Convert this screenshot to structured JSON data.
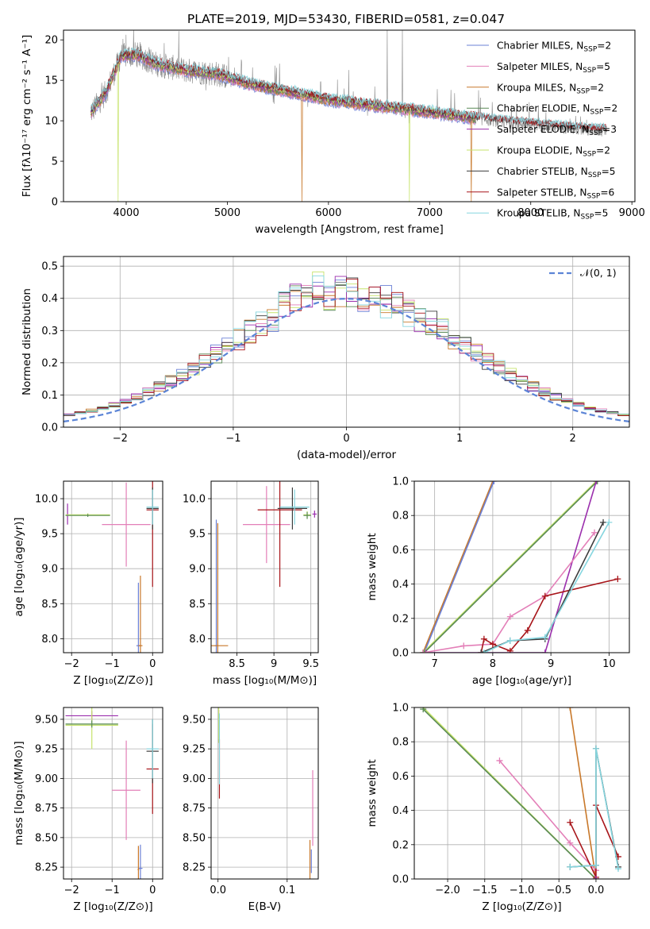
{
  "figure": {
    "title": "PLATE=2019, MJD=53430, FIBERID=0581, z=0.047"
  },
  "colors": {
    "Chabrier MILES": "#6b80d6",
    "Salpeter MILES": "#e37fb8",
    "Kroupa MILES": "#c8782a",
    "Chabrier ELODIE": "#5a8a56",
    "Salpeter ELODIE": "#9b2fad",
    "Kroupa ELODIE": "#c6e36b",
    "Chabrier STELIB": "#3c3c3c",
    "Salpeter STELIB": "#a8151a",
    "Kroupa STELIB": "#86d6df",
    "normal": "#5b84d6",
    "grid": "#b0b0b0"
  },
  "chart_data": [
    {
      "type": "line",
      "title": "PLATE=2019, MJD=53430, FIBERID=0581, z=0.047",
      "xlabel": "wavelength [Angstrom, rest frame]",
      "ylabel": "Flux [fλ10⁻¹⁷ erg cm⁻² s⁻¹ A⁻¹]",
      "xlim": [
        3380,
        9030
      ],
      "ylim": [
        0,
        21.2
      ],
      "xticks": [
        4000,
        5000,
        6000,
        7000,
        8000,
        9000
      ],
      "yticks": [
        0,
        5,
        10,
        15,
        20
      ],
      "grid": false,
      "legend_position": "top-right",
      "legend": [
        {
          "model": "Chabrier MILES",
          "nssp": "2"
        },
        {
          "model": "Salpeter MILES",
          "nssp": "5"
        },
        {
          "model": "Kroupa MILES",
          "nssp": "2"
        },
        {
          "model": "Chabrier ELODIE",
          "nssp": "2"
        },
        {
          "model": "Salpeter ELODIE",
          "nssp": "3"
        },
        {
          "model": "Kroupa ELODIE",
          "nssp": "2"
        },
        {
          "model": "Chabrier STELIB",
          "nssp": "5"
        },
        {
          "model": "Salpeter STELIB",
          "nssp": "6"
        },
        {
          "model": "Kroupa STELIB",
          "nssp": "5"
        }
      ],
      "continuum": [
        [
          3650,
          11
        ],
        [
          3800,
          13.5
        ],
        [
          3950,
          18
        ],
        [
          4100,
          18.2
        ],
        [
          4300,
          17
        ],
        [
          4600,
          16.2
        ],
        [
          4900,
          15.8
        ],
        [
          5200,
          14.6
        ],
        [
          5600,
          13.6
        ],
        [
          6000,
          12.6
        ],
        [
          6500,
          11.8
        ],
        [
          7000,
          11.1
        ],
        [
          7400,
          10.4
        ],
        [
          7800,
          9.8
        ],
        [
          8200,
          9.3
        ],
        [
          8600,
          8.9
        ],
        [
          8750,
          8.8
        ]
      ],
      "data_range_x": [
        3650,
        8750
      ],
      "model_range_x": [
        3650,
        7450
      ],
      "stelib_range_x": [
        7450,
        8750
      ],
      "dips": [
        {
          "x": 3920,
          "y": 0,
          "model": "Kroupa ELODIE"
        },
        {
          "x": 5740,
          "y": 0,
          "model": "Kroupa MILES"
        },
        {
          "x": 6800,
          "y": 0,
          "model": "Kroupa ELODIE"
        },
        {
          "x": 7410,
          "y": 0,
          "model": "Kroupa MILES"
        }
      ],
      "data_spikes": [
        6580,
        6730
      ]
    },
    {
      "type": "line",
      "xlabel": "(data-model)/error",
      "ylabel": "Normed distribution",
      "xlim": [
        -2.5,
        2.5
      ],
      "ylim": [
        0,
        0.53
      ],
      "xticks": [
        -2,
        -1,
        0,
        1,
        2
      ],
      "yticks": [
        0.0,
        0.1,
        0.2,
        0.3,
        0.4,
        0.5
      ],
      "grid": true,
      "legend_position": "top-right",
      "legend": [
        "𝒩(0, 1)"
      ],
      "bin_width": 0.1,
      "hist_left_edge": -2.5,
      "normal_curve": {
        "mean": 0.0,
        "sigma": 1.0
      }
    },
    {
      "type": "scatter",
      "xlabel": "Z [log₁₀(Z/Z⊙)]",
      "ylabel": "age  [log₁₀(age/yr)]",
      "xlim": [
        -2.2,
        0.25
      ],
      "ylim": [
        7.8,
        10.25
      ],
      "xticks": [
        -2,
        -1,
        0
      ],
      "yticks": [
        8.0,
        8.5,
        9.0,
        9.5,
        10.0
      ],
      "grid": true,
      "points": [
        {
          "model": "Chabrier MILES",
          "x": -0.35,
          "y": 7.9,
          "xe": 0.05,
          "ye": 0.9
        },
        {
          "model": "Kroupa MILES",
          "x": -0.3,
          "y": 7.9,
          "xe": 0.05,
          "ye": 1.0
        },
        {
          "model": "Salpeter MILES",
          "x": -0.65,
          "y": 9.63,
          "xe": 0.6,
          "ye": 0.6
        },
        {
          "model": "Salpeter ELODIE",
          "x": -2.1,
          "y": 9.78,
          "xe": 0.0,
          "ye": 0.15
        },
        {
          "model": "Kroupa ELODIE",
          "x": -1.6,
          "y": 9.77,
          "xe": 0.55,
          "ye": 0.02
        },
        {
          "model": "Chabrier ELODIE",
          "x": -1.6,
          "y": 9.76,
          "xe": 0.55,
          "ye": 0.02
        },
        {
          "model": "Salpeter STELIB",
          "x": 0.0,
          "y": 9.84,
          "xe": 0.15,
          "ye": 1.1
        },
        {
          "model": "Chabrier STELIB",
          "x": 0.0,
          "y": 9.86,
          "xe": 0.15,
          "ye": 0.3
        },
        {
          "model": "Kroupa STELIB",
          "x": 0.0,
          "y": 9.88,
          "xe": 0.15,
          "ye": 0.25
        }
      ]
    },
    {
      "type": "scatter",
      "xlabel": "mass [log₁₀(M/M⊙)]",
      "ylabel": "",
      "xlim": [
        8.15,
        9.6
      ],
      "ylim": [
        7.8,
        10.25
      ],
      "xticks": [
        8.5,
        9.0,
        9.5
      ],
      "yticks": [
        8.0,
        8.5,
        9.0,
        9.5,
        10.0
      ],
      "grid": true,
      "points": [
        {
          "model": "Chabrier MILES",
          "x": 8.22,
          "y": 7.9,
          "xe": 0.02,
          "ye": 1.8
        },
        {
          "model": "Kroupa MILES",
          "x": 8.24,
          "y": 7.9,
          "xe": 0.14,
          "ye": 1.75
        },
        {
          "model": "Salpeter MILES",
          "x": 8.9,
          "y": 9.63,
          "xe": 0.32,
          "ye": 0.55
        },
        {
          "model": "Salpeter ELODIE",
          "x": 9.55,
          "y": 9.78,
          "xe": 0.03,
          "ye": 0.05
        },
        {
          "model": "Kroupa ELODIE",
          "x": 9.45,
          "y": 9.77,
          "xe": 0.05,
          "ye": 0.05
        },
        {
          "model": "Chabrier ELODIE",
          "x": 9.45,
          "y": 9.76,
          "xe": 0.05,
          "ye": 0.05
        },
        {
          "model": "Salpeter STELIB",
          "x": 9.08,
          "y": 9.84,
          "xe": 0.3,
          "ye": 1.1
        },
        {
          "model": "Chabrier STELIB",
          "x": 9.25,
          "y": 9.86,
          "xe": 0.2,
          "ye": 0.3
        },
        {
          "model": "Kroupa STELIB",
          "x": 9.28,
          "y": 9.88,
          "xe": 0.2,
          "ye": 0.25
        }
      ]
    },
    {
      "type": "line",
      "xlabel": "age  [log₁₀(age/yr)]",
      "ylabel": "mass weight",
      "xlim": [
        6.65,
        10.35
      ],
      "ylim": [
        0.0,
        1.0
      ],
      "xticks": [
        7,
        8,
        9,
        10
      ],
      "yticks": [
        0.0,
        0.2,
        0.4,
        0.6,
        0.8,
        1.0
      ],
      "grid": true,
      "series": [
        {
          "model": "Kroupa MILES",
          "points": [
            [
              6.8,
              0.0
            ],
            [
              8.0,
              1.0
            ]
          ]
        },
        {
          "model": "Chabrier MILES",
          "points": [
            [
              6.82,
              0.0
            ],
            [
              8.02,
              1.0
            ]
          ]
        },
        {
          "model": "Kroupa ELODIE",
          "points": [
            [
              6.8,
              0.0
            ],
            [
              9.78,
              1.0
            ]
          ]
        },
        {
          "model": "Chabrier ELODIE",
          "points": [
            [
              6.82,
              0.0
            ],
            [
              9.8,
              1.0
            ]
          ]
        },
        {
          "model": "Salpeter ELODIE",
          "points": [
            [
              6.85,
              0.0
            ],
            [
              8.9,
              0.0
            ],
            [
              9.78,
              1.0
            ]
          ]
        },
        {
          "model": "Salpeter MILES",
          "points": [
            [
              6.8,
              0.0
            ],
            [
              7.5,
              0.04
            ],
            [
              8.0,
              0.05
            ],
            [
              8.3,
              0.21
            ],
            [
              8.9,
              0.33
            ],
            [
              9.75,
              0.7
            ]
          ]
        },
        {
          "model": "Salpeter STELIB",
          "points": [
            [
              7.8,
              0.0
            ],
            [
              7.85,
              0.08
            ],
            [
              8.0,
              0.05
            ],
            [
              8.3,
              0.01
            ],
            [
              8.6,
              0.13
            ],
            [
              8.9,
              0.33
            ],
            [
              10.15,
              0.43
            ]
          ]
        },
        {
          "model": "Chabrier STELIB",
          "points": [
            [
              7.8,
              0.0
            ],
            [
              8.3,
              0.07
            ],
            [
              8.9,
              0.08
            ],
            [
              9.9,
              0.76
            ]
          ]
        },
        {
          "model": "Kroupa STELIB",
          "points": [
            [
              7.85,
              0.0
            ],
            [
              8.3,
              0.07
            ],
            [
              8.9,
              0.09
            ],
            [
              10.0,
              0.76
            ]
          ]
        }
      ]
    },
    {
      "type": "scatter",
      "xlabel": "Z [log₁₀(Z/Z⊙)]",
      "ylabel": "mass [log₁₀(M/M⊙)]",
      "xlim": [
        -2.2,
        0.25
      ],
      "ylim": [
        8.15,
        9.6
      ],
      "xticks": [
        -2,
        -1,
        0
      ],
      "yticks": [
        8.25,
        8.5,
        8.75,
        9.0,
        9.25,
        9.5
      ],
      "grid": true,
      "points": [
        {
          "model": "Salpeter ELODIE",
          "x": -1.5,
          "y": 9.53,
          "xe": 0.65,
          "ye": 0.04
        },
        {
          "model": "Kroupa ELODIE",
          "x": -1.5,
          "y": 9.45,
          "xe": 0.65,
          "ye": 0.2
        },
        {
          "model": "Chabrier ELODIE",
          "x": -1.5,
          "y": 9.46,
          "xe": 0.65,
          "ye": 0.03
        },
        {
          "model": "Salpeter MILES",
          "x": -0.65,
          "y": 8.9,
          "xe": 0.35,
          "ye": 0.42
        },
        {
          "model": "Chabrier MILES",
          "x": -0.3,
          "y": 8.24,
          "xe": 0.05,
          "ye": 0.2
        },
        {
          "model": "Kroupa MILES",
          "x": -0.35,
          "y": 8.23,
          "xe": 0.02,
          "ye": 0.2
        },
        {
          "model": "Salpeter STELIB",
          "x": 0.0,
          "y": 9.08,
          "xe": 0.15,
          "ye": 0.38
        },
        {
          "model": "Chabrier STELIB",
          "x": 0.0,
          "y": 9.23,
          "xe": 0.15,
          "ye": 0.27
        },
        {
          "model": "Kroupa STELIB",
          "x": 0.0,
          "y": 9.25,
          "xe": 0.15,
          "ye": 0.25
        }
      ]
    },
    {
      "type": "scatter",
      "xlabel": "E(B-V)",
      "ylabel": "",
      "xlim": [
        -0.01,
        0.145
      ],
      "ylim": [
        8.15,
        9.6
      ],
      "xticks": [
        0.0,
        0.1
      ],
      "yticks": [
        8.25,
        8.5,
        8.75,
        9.0,
        9.25,
        9.5
      ],
      "grid": true,
      "points": [
        {
          "model": "Salpeter ELODIE",
          "x": 0.001,
          "y": 9.53,
          "xe": 0.0,
          "ye": 0.05
        },
        {
          "model": "Kroupa ELODIE",
          "x": 0.001,
          "y": 9.45,
          "xe": 0.0,
          "ye": 0.15
        },
        {
          "model": "Salpeter STELIB",
          "x": 0.002,
          "y": 9.08,
          "xe": 0.0,
          "ye": 0.25
        },
        {
          "model": "Kroupa STELIB",
          "x": 0.002,
          "y": 9.25,
          "xe": 0.0,
          "ye": 0.3
        },
        {
          "model": "Salpeter MILES",
          "x": 0.137,
          "y": 8.75,
          "xe": 0.0,
          "ye": 0.32
        },
        {
          "model": "Kroupa MILES",
          "x": 0.133,
          "y": 8.3,
          "xe": 0.0,
          "ye": 0.18
        },
        {
          "model": "Chabrier MILES",
          "x": 0.135,
          "y": 8.3,
          "xe": 0.0,
          "ye": 0.1
        }
      ]
    },
    {
      "type": "line",
      "xlabel": "Z [log₁₀(Z/Z⊙)]",
      "ylabel": "mass weight",
      "xlim": [
        -2.45,
        0.45
      ],
      "ylim": [
        0.0,
        1.0
      ],
      "xticks": [
        -2.0,
        -1.5,
        -1.0,
        -0.5,
        0.0
      ],
      "yticks": [
        0.0,
        0.2,
        0.4,
        0.6,
        0.8,
        1.0
      ],
      "grid": true,
      "series": [
        {
          "model": "Kroupa ELODIE",
          "points": [
            [
              -2.33,
              1.0
            ],
            [
              0.0,
              0.0
            ]
          ]
        },
        {
          "model": "Chabrier ELODIE",
          "points": [
            [
              -2.33,
              0.99
            ],
            [
              0.0,
              0.0
            ]
          ]
        },
        {
          "model": "Kroupa MILES",
          "points": [
            [
              -0.35,
              1.0
            ],
            [
              0.0,
              0.0
            ]
          ]
        },
        {
          "model": "Salpeter MILES",
          "points": [
            [
              -1.3,
              0.69
            ],
            [
              -0.35,
              0.21
            ],
            [
              0.0,
              0.05
            ]
          ]
        },
        {
          "model": "Salpeter STELIB",
          "points": [
            [
              -0.35,
              0.33
            ],
            [
              0.0,
              0.01
            ],
            [
              0.0,
              0.43
            ],
            [
              0.3,
              0.13
            ]
          ]
        },
        {
          "model": "Chabrier STELIB",
          "points": [
            [
              -0.35,
              0.07
            ],
            [
              0.0,
              0.08
            ],
            [
              0.0,
              0.76
            ],
            [
              0.3,
              0.07
            ]
          ]
        },
        {
          "model": "Kroupa STELIB",
          "points": [
            [
              -0.35,
              0.07
            ],
            [
              0.0,
              0.08
            ],
            [
              0.0,
              0.76
            ],
            [
              0.3,
              0.06
            ]
          ]
        },
        {
          "model": "Salpeter ELODIE",
          "points": [
            [
              0.0,
              0.0
            ],
            [
              0.0,
              0.0
            ]
          ]
        }
      ]
    }
  ]
}
